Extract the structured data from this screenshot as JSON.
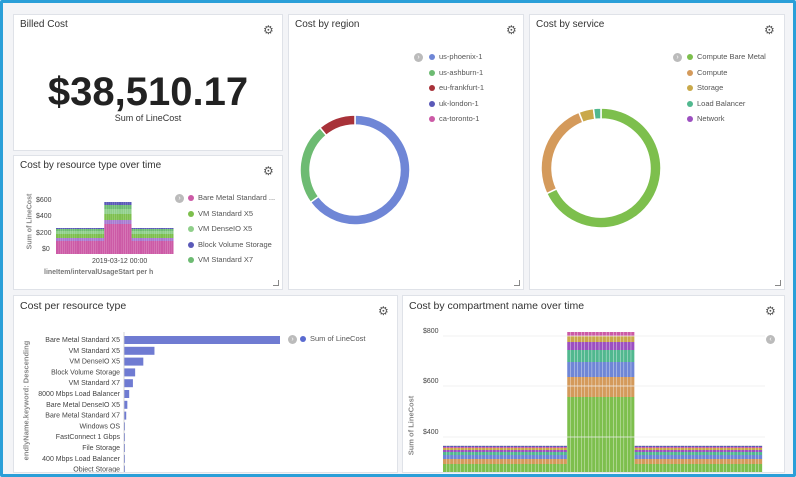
{
  "billed": {
    "title": "Billed Cost",
    "value": "$38,510.17",
    "sublabel": "Sum of LineCost"
  },
  "region": {
    "title": "Cost by region",
    "legend": [
      {
        "label": "us-phoenix-1",
        "color": "#6f86d6"
      },
      {
        "label": "us-ashburn-1",
        "color": "#6dbb72"
      },
      {
        "label": "eu-frankfurt-1",
        "color": "#a83239"
      },
      {
        "label": "uk-london-1",
        "color": "#5a59b8"
      },
      {
        "label": "ca-toronto-1",
        "color": "#cc5aa6"
      }
    ],
    "slices": [
      0.65,
      0.24,
      0.11
    ]
  },
  "service": {
    "title": "Cost by service",
    "legend": [
      {
        "label": "Compute Bare Metal",
        "color": "#7dbf4d"
      },
      {
        "label": "Compute",
        "color": "#d49a5b"
      },
      {
        "label": "Storage",
        "color": "#c9a94a"
      },
      {
        "label": "Load Balancer",
        "color": "#51b88f"
      },
      {
        "label": "Network",
        "color": "#9c4fc0"
      }
    ],
    "slices": [
      0.68,
      0.26,
      0.04,
      0.02
    ]
  },
  "restype_time": {
    "title": "Cost by resource type over time",
    "ylabel": "Sum of LineCost",
    "yticks": [
      "$600",
      "$400",
      "$200",
      "$0"
    ],
    "xtick": "2019-03-12 00:00",
    "xlabel": "lineItem/intervalUsageStart per h",
    "legend": [
      {
        "label": "Bare Metal Standard ...",
        "color": "#cc5aa6"
      },
      {
        "label": "VM Standard X5",
        "color": "#7dbf4d"
      },
      {
        "label": "VM DenseIO X5",
        "color": "#8fcf8a"
      },
      {
        "label": "Block Volume Storage",
        "color": "#5a59b8"
      },
      {
        "label": "VM Standard X7",
        "color": "#6dbb72"
      }
    ]
  },
  "per_restype": {
    "title": "Cost per resource type",
    "ylabel": "endlyName.keyword: Descending",
    "legend": "Sum of LineCost",
    "bar_color": "#6f7bd2",
    "categories": [
      "Bare Metal Standard X5",
      "VM Standard X5",
      "VM DenseIO X5",
      "Block Volume Storage",
      "VM Standard X7",
      "8000 Mbps Load Balancer",
      "Bare Metal DenseIO X5",
      "Bare Metal Standard X7",
      "Windows OS",
      "FastConnect 1 Gbps",
      "File Storage",
      "400 Mbps Load Balancer",
      "Object Storage"
    ],
    "values": [
      21000,
      4100,
      2600,
      1500,
      1200,
      700,
      450,
      300,
      60,
      40,
      30,
      20,
      10
    ]
  },
  "compartment_time": {
    "title": "Cost by compartment name over time",
    "ylabel": "Sum of LineCost",
    "yticks": [
      "$800",
      "$600",
      "$400"
    ]
  },
  "icons": {
    "gear": "gear-icon",
    "chevron": "chevron-right-icon",
    "resize": "resize-handle"
  }
}
